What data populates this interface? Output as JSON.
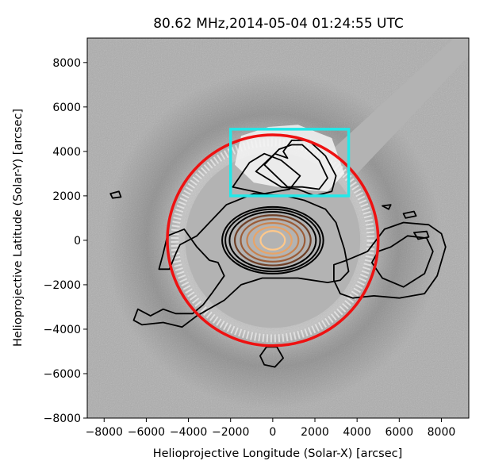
{
  "chart_data": {
    "type": "heatmap",
    "title": "80.62 MHz,2014-05-04 01:24:55 UTC",
    "xlabel": "Helioprojective Longitude (Solar-X) [arcsec]",
    "ylabel": "Helioprojective Latitude (Solar-Y) [arcsec]",
    "xlim": [
      -8800,
      9300
    ],
    "ylim": [
      -8000,
      9100
    ],
    "xticks": [
      -8000,
      -6000,
      -4000,
      -2000,
      0,
      2000,
      4000,
      6000,
      8000
    ],
    "yticks": [
      -8000,
      -6000,
      -4000,
      -2000,
      0,
      2000,
      4000,
      6000,
      8000
    ],
    "grid": false,
    "colors": {
      "limb_circle": "#ee1111",
      "box": "#22e8e8",
      "contours_outer": "#000000",
      "contours_inner": [
        "#3a2016",
        "#6e4028",
        "#9a5c38",
        "#c8824e",
        "#e8a468",
        "#ffc88a"
      ],
      "background": "#a8a8a8",
      "occulter": "#b0b0b0"
    },
    "limb_circle": {
      "center": [
        0,
        0
      ],
      "radius": 5000
    },
    "occulter_radius": 4150,
    "box": {
      "x": [
        -2000,
        3600
      ],
      "y": [
        2000,
        5000
      ]
    },
    "contour_levels_center": [
      0,
      0
    ],
    "contour_radii": [
      [
        2400,
        1500
      ],
      [
        2250,
        1400
      ],
      [
        2050,
        1280
      ],
      [
        1800,
        1130
      ],
      [
        1520,
        960
      ],
      [
        1220,
        780
      ],
      [
        900,
        600
      ],
      [
        580,
        420
      ]
    ]
  }
}
